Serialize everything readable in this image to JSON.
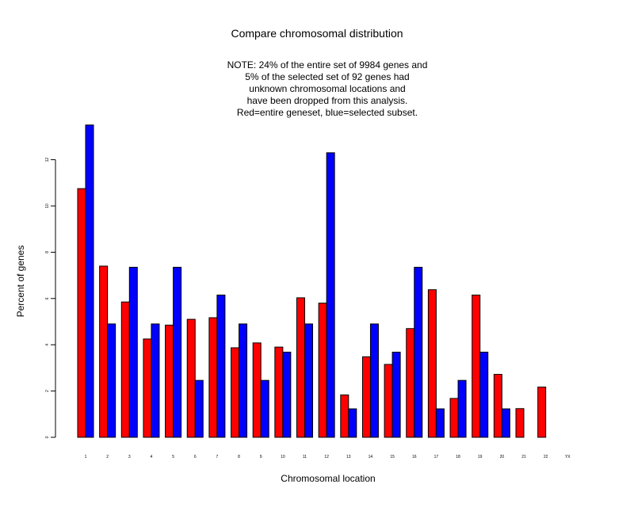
{
  "chart_data": {
    "type": "bar",
    "title": "Compare chromosomal distribution",
    "note_lines": [
      "NOTE: 24% of the entire set of 9984 genes and",
      "5% of the selected set of 92 genes had",
      "unknown chromosomal locations and",
      "have been dropped from this analysis.",
      "Red=entire geneset, blue=selected subset."
    ],
    "xlabel": "Chromosomal location",
    "ylabel": "Percent of genes",
    "ylim": [
      0,
      13.5
    ],
    "yticks": [
      "0",
      "2",
      "4",
      "6",
      "8",
      "10",
      "12"
    ],
    "categories": [
      "1",
      "2",
      "3",
      "4",
      "5",
      "6",
      "7",
      "8",
      "9",
      "10",
      "11",
      "12",
      "13",
      "14",
      "15",
      "16",
      "17",
      "18",
      "19",
      "20",
      "21",
      "22",
      "YX"
    ],
    "series": [
      {
        "name": "entire geneset",
        "color": "#ff0000",
        "values": [
          10.75,
          7.4,
          5.85,
          4.25,
          4.85,
          5.1,
          5.17,
          3.87,
          4.08,
          3.9,
          6.03,
          5.8,
          1.83,
          3.48,
          3.15,
          4.7,
          6.38,
          1.68,
          6.15,
          2.72,
          1.24,
          2.17,
          0.0
        ]
      },
      {
        "name": "selected subset",
        "color": "#0000ff",
        "values": [
          13.5,
          4.9,
          7.35,
          4.9,
          7.35,
          2.46,
          6.15,
          4.9,
          2.46,
          3.68,
          4.9,
          12.3,
          1.23,
          4.9,
          3.68,
          7.35,
          1.23,
          2.46,
          3.68,
          1.23,
          0.0,
          0.0,
          0.0
        ]
      }
    ]
  }
}
